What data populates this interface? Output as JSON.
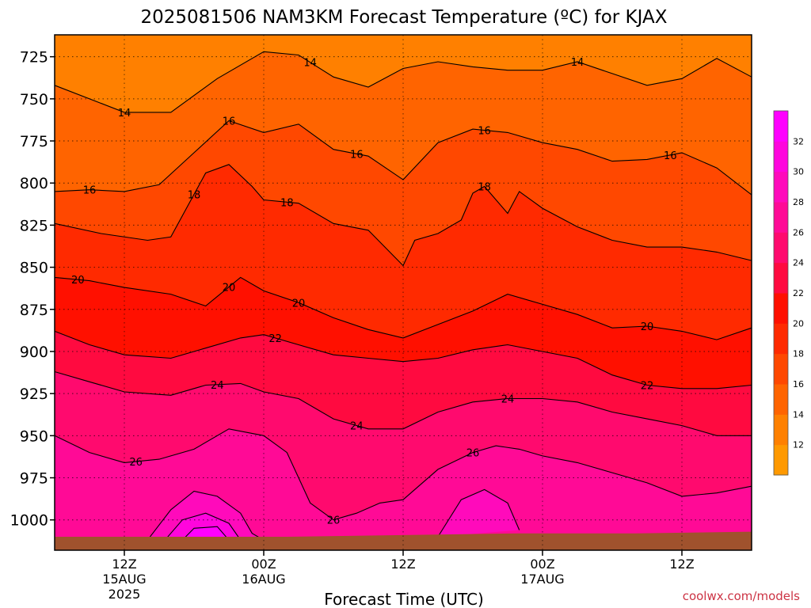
{
  "chart_data": {
    "type": "heatmap",
    "title": "2025081506 NAM3KM Forecast Temperature (ºC) for KJAX",
    "xlabel": "Forecast Time (UTC)",
    "credit": "coolwx.com/models",
    "y_axis": {
      "range": [
        712,
        1018
      ],
      "inverted": true,
      "ticks": [
        725,
        750,
        775,
        800,
        825,
        850,
        875,
        900,
        925,
        950,
        975,
        1000
      ],
      "tick_labels": [
        "725",
        "750",
        "775",
        "800",
        "825",
        "850",
        "875",
        "900",
        "925",
        "950",
        "975",
        "1000"
      ]
    },
    "x_axis": {
      "range_hours": [
        0,
        60
      ],
      "ticks": [
        {
          "hour": 6,
          "line1": "12Z",
          "line2": "15AUG",
          "line3": "2025"
        },
        {
          "hour": 18,
          "line1": "00Z",
          "line2": "16AUG",
          "line3": ""
        },
        {
          "hour": 30,
          "line1": "12Z",
          "line2": "",
          "line3": ""
        },
        {
          "hour": 42,
          "line1": "00Z",
          "line2": "17AUG",
          "line3": ""
        },
        {
          "hour": 54,
          "line1": "12Z",
          "line2": "",
          "line3": ""
        }
      ]
    },
    "grid": true,
    "colorbar": {
      "labels": [
        "12",
        "14",
        "16",
        "18",
        "20",
        "22",
        "24",
        "26",
        "28",
        "30",
        "32"
      ],
      "colors": [
        "#ff9900",
        "#ff8000",
        "#ff6400",
        "#ff4800",
        "#ff2a00",
        "#ff1000",
        "#ff0a40",
        "#ff0a6e",
        "#ff0a96",
        "#ff0abb",
        "#ff05dd",
        "#ff00ff"
      ],
      "placement": "right"
    },
    "isotherms": [
      {
        "value": 14,
        "label": "14",
        "pressure_by_time": [
          [
            0,
            742
          ],
          [
            6,
            758
          ],
          [
            10,
            758
          ],
          [
            14,
            738
          ],
          [
            18,
            722
          ],
          [
            21,
            724
          ],
          [
            24,
            737
          ],
          [
            27,
            743
          ],
          [
            30,
            732
          ],
          [
            33,
            728
          ],
          [
            36,
            731
          ],
          [
            39,
            733
          ],
          [
            42,
            733
          ],
          [
            45,
            728
          ],
          [
            48,
            735
          ],
          [
            51,
            742
          ],
          [
            54,
            738
          ],
          [
            57,
            726
          ],
          [
            60,
            737
          ]
        ],
        "labels_at": [
          [
            6,
            14
          ],
          [
            22,
            14
          ],
          [
            45,
            14
          ]
        ]
      },
      {
        "value": 16,
        "label": "16",
        "pressure_by_time": [
          [
            0,
            805
          ],
          [
            3,
            804
          ],
          [
            6,
            805
          ],
          [
            9,
            801
          ],
          [
            12,
            782
          ],
          [
            15,
            763
          ],
          [
            18,
            770
          ],
          [
            21,
            765
          ],
          [
            24,
            780
          ],
          [
            27,
            784
          ],
          [
            30,
            798
          ],
          [
            33,
            776
          ],
          [
            36,
            768
          ],
          [
            39,
            770
          ],
          [
            42,
            776
          ],
          [
            45,
            780
          ],
          [
            48,
            787
          ],
          [
            51,
            786
          ],
          [
            54,
            782
          ],
          [
            57,
            791
          ],
          [
            60,
            807
          ]
        ],
        "labels_at": [
          [
            3,
            16
          ],
          [
            15,
            16
          ],
          [
            26,
            16
          ],
          [
            37,
            16
          ],
          [
            53,
            16
          ]
        ]
      },
      {
        "value": 18,
        "label": "18",
        "pressure_by_time": [
          [
            0,
            824
          ],
          [
            4,
            830
          ],
          [
            8,
            834
          ],
          [
            10,
            832
          ],
          [
            13,
            794
          ],
          [
            15,
            789
          ],
          [
            17,
            802
          ],
          [
            18,
            810
          ],
          [
            21,
            812
          ],
          [
            24,
            824
          ],
          [
            27,
            828
          ],
          [
            30,
            849
          ],
          [
            31,
            834
          ],
          [
            33,
            830
          ],
          [
            35,
            822
          ],
          [
            36,
            806
          ],
          [
            37,
            802
          ],
          [
            39,
            818
          ],
          [
            40,
            805
          ],
          [
            42,
            815
          ],
          [
            45,
            826
          ],
          [
            48,
            834
          ],
          [
            51,
            838
          ],
          [
            54,
            838
          ],
          [
            57,
            841
          ],
          [
            60,
            846
          ]
        ],
        "labels_at": [
          [
            12,
            18
          ],
          [
            20,
            18
          ],
          [
            37,
            18
          ]
        ]
      },
      {
        "value": 20,
        "label": "20",
        "pressure_by_time": [
          [
            0,
            856
          ],
          [
            3,
            858
          ],
          [
            6,
            862
          ],
          [
            10,
            866
          ],
          [
            13,
            873
          ],
          [
            16,
            856
          ],
          [
            18,
            864
          ],
          [
            21,
            871
          ],
          [
            24,
            880
          ],
          [
            27,
            887
          ],
          [
            30,
            892
          ],
          [
            33,
            884
          ],
          [
            36,
            876
          ],
          [
            39,
            866
          ],
          [
            42,
            872
          ],
          [
            45,
            878
          ],
          [
            48,
            886
          ],
          [
            51,
            885
          ],
          [
            54,
            888
          ],
          [
            57,
            893
          ],
          [
            60,
            886
          ]
        ],
        "labels_at": [
          [
            2,
            20
          ],
          [
            15,
            20
          ],
          [
            21,
            20
          ],
          [
            51,
            20
          ]
        ]
      },
      {
        "value": 22,
        "label": "22",
        "pressure_by_time": [
          [
            0,
            888
          ],
          [
            3,
            896
          ],
          [
            6,
            902
          ],
          [
            10,
            904
          ],
          [
            13,
            898
          ],
          [
            16,
            892
          ],
          [
            18,
            890
          ],
          [
            21,
            896
          ],
          [
            24,
            902
          ],
          [
            27,
            904
          ],
          [
            30,
            906
          ],
          [
            33,
            904
          ],
          [
            36,
            899
          ],
          [
            39,
            896
          ],
          [
            42,
            900
          ],
          [
            45,
            904
          ],
          [
            48,
            914
          ],
          [
            51,
            920
          ],
          [
            54,
            922
          ],
          [
            57,
            922
          ],
          [
            60,
            920
          ]
        ],
        "labels_at": [
          [
            19,
            22
          ],
          [
            51,
            22
          ]
        ]
      },
      {
        "value": 24,
        "label": "24",
        "pressure_by_time": [
          [
            0,
            912
          ],
          [
            3,
            918
          ],
          [
            6,
            924
          ],
          [
            10,
            926
          ],
          [
            13,
            920
          ],
          [
            16,
            919
          ],
          [
            18,
            924
          ],
          [
            21,
            928
          ],
          [
            24,
            940
          ],
          [
            27,
            946
          ],
          [
            30,
            946
          ],
          [
            33,
            936
          ],
          [
            36,
            930
          ],
          [
            39,
            928
          ],
          [
            42,
            928
          ],
          [
            45,
            930
          ],
          [
            48,
            936
          ],
          [
            51,
            940
          ],
          [
            54,
            944
          ],
          [
            57,
            950
          ],
          [
            60,
            950
          ]
        ],
        "labels_at": [
          [
            14,
            24
          ],
          [
            39,
            24
          ],
          [
            26,
            24
          ]
        ]
      },
      {
        "value": 26,
        "label": "26",
        "pressure_by_time": [
          [
            0,
            950
          ],
          [
            3,
            960
          ],
          [
            6,
            966
          ],
          [
            9,
            964
          ],
          [
            12,
            958
          ],
          [
            15,
            946
          ],
          [
            18,
            950
          ],
          [
            20,
            960
          ],
          [
            22,
            990
          ],
          [
            24,
            1000
          ],
          [
            26,
            996
          ],
          [
            28,
            990
          ],
          [
            30,
            988
          ],
          [
            33,
            970
          ],
          [
            36,
            960
          ],
          [
            38,
            956
          ],
          [
            40,
            958
          ],
          [
            42,
            962
          ],
          [
            45,
            966
          ],
          [
            48,
            972
          ],
          [
            51,
            978
          ],
          [
            54,
            986
          ],
          [
            57,
            984
          ],
          [
            60,
            980
          ]
        ],
        "labels_at": [
          [
            7,
            26
          ],
          [
            24,
            26
          ],
          [
            36,
            26
          ]
        ]
      },
      {
        "value": 28,
        "label": "",
        "pressure_by_time": [
          [
            8,
            1012
          ],
          [
            10,
            994
          ],
          [
            12,
            983
          ],
          [
            14,
            986
          ],
          [
            16,
            996
          ],
          [
            17,
            1008
          ],
          [
            18,
            1012
          ]
        ]
      },
      {
        "value": 28,
        "label": "",
        "pressure_by_time": [
          [
            33,
            1010
          ],
          [
            35,
            988
          ],
          [
            37,
            982
          ],
          [
            39,
            990
          ],
          [
            40,
            1006
          ]
        ]
      },
      {
        "value": 30,
        "label": "",
        "pressure_by_time": [
          [
            9.5,
            1012
          ],
          [
            11,
            1000
          ],
          [
            13,
            996
          ],
          [
            15,
            1002
          ],
          [
            16,
            1012
          ]
        ]
      },
      {
        "value": 32,
        "label": "",
        "pressure_by_time": [
          [
            11,
            1012
          ],
          [
            12,
            1005
          ],
          [
            14,
            1004
          ],
          [
            15,
            1012
          ]
        ]
      }
    ],
    "ground": {
      "label": "",
      "pressure_by_time": [
        [
          0,
          1010
        ],
        [
          20,
          1010
        ],
        [
          30,
          1009
        ],
        [
          40,
          1008
        ],
        [
          50,
          1008
        ],
        [
          60,
          1007
        ]
      ],
      "color": "#a0522d"
    }
  }
}
